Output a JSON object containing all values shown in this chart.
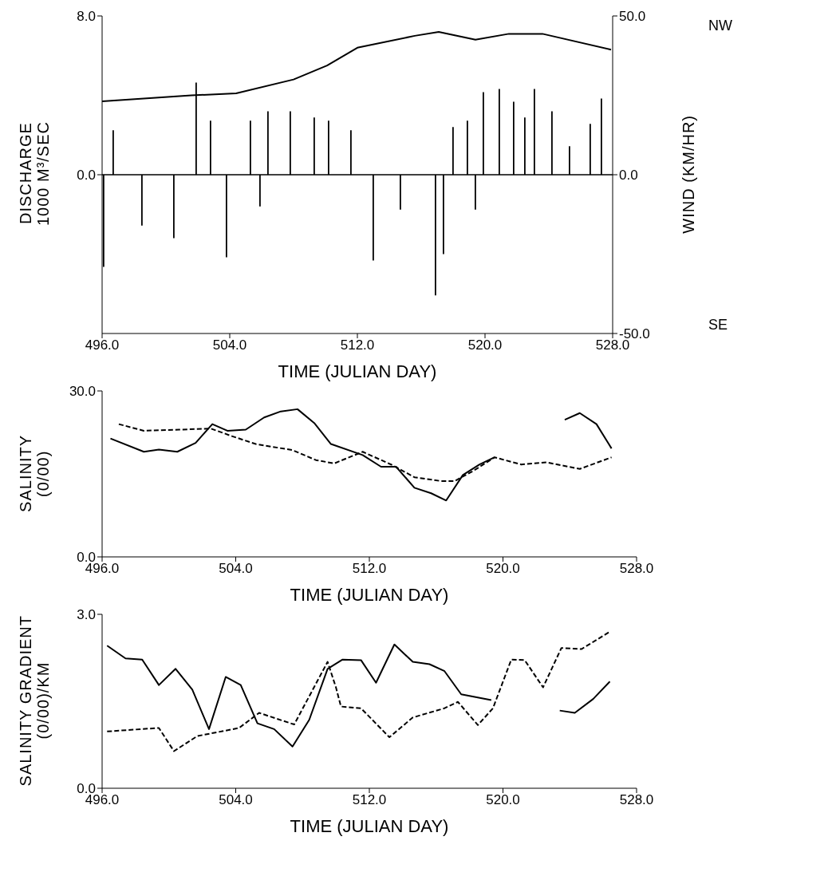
{
  "chart_data": [
    {
      "type": "line",
      "ylabel": "DISCHARGE\n1000 M³/SEC",
      "y2label": "WIND (KM/HR)",
      "xlabel": "TIME (JULIAN DAY)",
      "annotations": [
        "NW",
        "SE"
      ],
      "xlim": [
        496,
        528
      ],
      "xticks": [
        {
          "value": 496,
          "label": "496.0"
        },
        {
          "value": 504,
          "label": "504.0"
        },
        {
          "value": 512,
          "label": "512.0"
        },
        {
          "value": 520,
          "label": "520.0"
        },
        {
          "value": 528,
          "label": "528.0"
        }
      ],
      "ylim": [
        -8,
        8
      ],
      "yticks": [
        {
          "value": 0,
          "label": "0.0"
        },
        {
          "value": 8,
          "label": "8.0"
        }
      ],
      "y2lim": [
        -50,
        50
      ],
      "y2ticks": [
        {
          "value": -50,
          "label": "-50.0"
        },
        {
          "value": 0,
          "label": "0.0"
        },
        {
          "value": 50,
          "label": "50.0"
        }
      ],
      "series": [
        {
          "type": "line",
          "color": "#000000",
          "line_style": "solid",
          "x": [
            496,
            501.6,
            504.4,
            508,
            510.1,
            512,
            515.6,
            517.1,
            519.4,
            521.5,
            523.6,
            527.9
          ],
          "values": [
            3.7,
            4.0,
            4.1,
            4.8,
            5.5,
            6.4,
            7.0,
            7.2,
            6.8,
            7.1,
            7.1,
            6.3
          ]
        },
        {
          "type": "bar",
          "axis": "y2",
          "color": "#000000",
          "x": [
            496.1,
            496.7,
            498.5,
            500.5,
            501.9,
            502.8,
            503.8,
            505.3,
            505.9,
            506.4,
            507.8,
            509.3,
            510.2,
            511.6,
            513,
            514.7,
            516.9,
            517.4,
            518,
            518.9,
            519.4,
            519.9,
            520.9,
            521.8,
            522.5,
            523.1,
            524.2,
            525.3,
            526.6,
            527.3
          ],
          "values": [
            -29,
            14,
            -16,
            -20,
            29,
            17,
            -26,
            17,
            -10,
            20,
            20,
            18,
            17,
            14,
            -27,
            -11,
            -38,
            -25,
            15,
            17,
            -11,
            26,
            27,
            23,
            18,
            27,
            20,
            9,
            16,
            24
          ]
        }
      ]
    },
    {
      "type": "line",
      "ylabel": "SALINITY\n(0/00)",
      "xlabel": "TIME (JULIAN DAY)",
      "xlim": [
        496,
        528
      ],
      "xticks": [
        {
          "value": 496,
          "label": "496.0"
        },
        {
          "value": 504,
          "label": "504.0"
        },
        {
          "value": 512,
          "label": "512.0"
        },
        {
          "value": 520,
          "label": "520.0"
        },
        {
          "value": 528,
          "label": "528.0"
        }
      ],
      "ylim": [
        0,
        30
      ],
      "yticks": [
        {
          "value": 0,
          "label": "0.0"
        },
        {
          "value": 30,
          "label": "30.0"
        }
      ],
      "series": [
        {
          "color": "#000000",
          "line_style": "solid",
          "x": [
            496.5,
            498.5,
            499.4,
            500.5,
            501.6,
            502.6,
            503.5,
            504.6,
            505.7,
            506.7,
            507.7,
            508.7,
            509.7,
            511.6,
            512.7,
            513.6,
            514.7,
            515.7,
            516.6,
            517.6,
            518.6,
            519.5,
            521.6,
            523.7,
            524.6,
            525.6,
            526.5
          ],
          "values": [
            21.4,
            19.0,
            19.4,
            19.0,
            20.6,
            24.0,
            22.8,
            23.0,
            25.2,
            26.3,
            26.7,
            24.2,
            20.4,
            18.4,
            16.3,
            16.3,
            12.5,
            11.5,
            10.2,
            14.8,
            16.7,
            18.0,
            null,
            24.8,
            26.0,
            24.0,
            19.6
          ]
        },
        {
          "color": "#000000",
          "line_style": "dashed",
          "x": [
            497,
            498.5,
            500.6,
            502.5,
            503.8,
            505.2,
            507.4,
            508.8,
            509.9,
            511.6,
            513.3,
            514.7,
            516.3,
            517.1,
            518.2,
            519.5,
            521.1,
            522.6,
            524.6,
            526.5
          ],
          "values": [
            24.0,
            22.8,
            23.0,
            23.2,
            21.8,
            20.4,
            19.3,
            17.5,
            16.9,
            19.0,
            16.7,
            14.4,
            13.7,
            13.7,
            15.5,
            18.0,
            16.7,
            17.1,
            15.9,
            18.0
          ]
        }
      ]
    },
    {
      "type": "line",
      "ylabel": "SALINITY GRADIENT\n(0/00)/KM",
      "xlabel": "TIME (JULIAN DAY)",
      "xlim": [
        496,
        528
      ],
      "xticks": [
        {
          "value": 496,
          "label": "496.0"
        },
        {
          "value": 504,
          "label": "504.0"
        },
        {
          "value": 512,
          "label": "512.0"
        },
        {
          "value": 520,
          "label": "520.0"
        },
        {
          "value": 528,
          "label": "528.0"
        }
      ],
      "ylim": [
        0,
        3
      ],
      "yticks": [
        {
          "value": 0,
          "label": "0.0"
        },
        {
          "value": 3,
          "label": "3.0"
        }
      ],
      "series": [
        {
          "color": "#000000",
          "line_style": "solid",
          "x": [
            496.3,
            497.4,
            498.4,
            499.4,
            500.4,
            501.4,
            502.4,
            503.4,
            504.3,
            505.3,
            506.3,
            507.4,
            508.4,
            509.5,
            510.4,
            511.5,
            512.4,
            513.5,
            514.6,
            515.6,
            516.5,
            517.5,
            519.3,
            521.4,
            523.4,
            524.3,
            525.4,
            526.4
          ],
          "values": [
            2.46,
            2.24,
            2.22,
            1.78,
            2.06,
            1.7,
            1.02,
            1.92,
            1.78,
            1.12,
            1.02,
            0.72,
            1.18,
            2.06,
            2.22,
            2.21,
            1.82,
            2.48,
            2.18,
            2.14,
            2.02,
            1.62,
            1.52,
            null,
            1.34,
            1.3,
            1.54,
            1.84
          ]
        },
        {
          "color": "#000000",
          "line_style": "dashed",
          "x": [
            496.3,
            499.4,
            500.3,
            501.7,
            504.2,
            505.4,
            507.5,
            509.5,
            510,
            510.3,
            511.5,
            513.2,
            514.6,
            516.5,
            517.3,
            518.5,
            519.4,
            520.5,
            521.3,
            522.4,
            523.5,
            524.7,
            526.4
          ],
          "values": [
            0.98,
            1.04,
            0.64,
            0.9,
            1.04,
            1.3,
            1.1,
            2.18,
            1.74,
            1.41,
            1.38,
            0.88,
            1.22,
            1.38,
            1.49,
            1.09,
            1.38,
            2.22,
            2.21,
            1.74,
            2.42,
            2.4,
            2.7
          ]
        }
      ]
    }
  ]
}
